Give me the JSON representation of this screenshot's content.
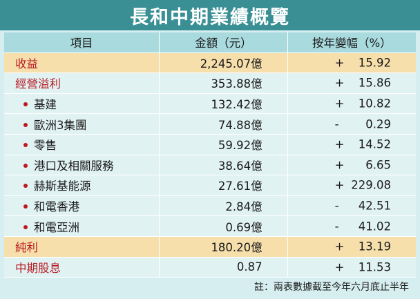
{
  "title": "長和中期業績概覽",
  "header": {
    "item": "項目",
    "amount": "金額（元）",
    "change": "按年變幅（%）"
  },
  "rows": [
    {
      "name": "收益",
      "amount": "2,245.07億",
      "sign": "+",
      "pct": "15.92"
    },
    {
      "name": "經營溢利",
      "amount": "353.88億",
      "sign": "+",
      "pct": "15.86"
    },
    {
      "name": "基建",
      "amount": "132.42億",
      "sign": "+",
      "pct": "10.82"
    },
    {
      "name": "歐洲3集團",
      "amount": "74.88億",
      "sign": "-",
      "pct": "0.29"
    },
    {
      "name": "零售",
      "amount": "59.92億",
      "sign": "+",
      "pct": "14.52"
    },
    {
      "name": "港口及相關服務",
      "amount": "38.64億",
      "sign": "+",
      "pct": "6.65"
    },
    {
      "name": "赫斯基能源",
      "amount": "27.61億",
      "sign": "+",
      "pct": "229.08"
    },
    {
      "name": "和電香港",
      "amount": "2.84億",
      "sign": "-",
      "pct": "42.51"
    },
    {
      "name": "和電亞洲",
      "amount": "0.69億",
      "sign": "-",
      "pct": "41.02"
    },
    {
      "name": "純利",
      "amount": "180.20億",
      "sign": "+",
      "pct": "13.19"
    },
    {
      "name": "中期股息",
      "amount": "0.87",
      "sign": "+",
      "pct": "11.53"
    }
  ],
  "note": "註：兩表數據截至今年六月底止半年",
  "colors": {
    "title_bg": "#3a8f94",
    "header_bg": "#a9dade",
    "row_bg": "#e1f2f3",
    "highlight_bg": "#f6dfab",
    "accent_text": "#b81c24",
    "bullet": "#c0161d",
    "page_bg": "#d6eef0"
  }
}
